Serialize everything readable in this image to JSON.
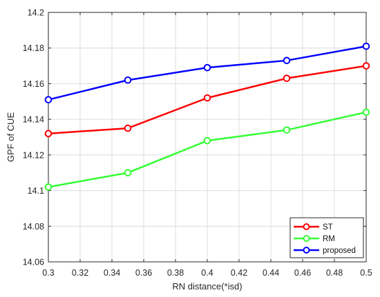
{
  "chart_data": {
    "type": "line",
    "xlabel": "RN distance(*isd)",
    "ylabel": "GPF of CUE",
    "xlim": [
      0.3,
      0.5
    ],
    "ylim": [
      14.06,
      14.2
    ],
    "xticks": [
      "0.3",
      "0.32",
      "0.34",
      "0.36",
      "0.38",
      "0.4",
      "0.42",
      "0.44",
      "0.46",
      "0.48",
      "0.5"
    ],
    "yticks": [
      "14.06",
      "14.08",
      "14.1",
      "14.12",
      "14.14",
      "14.16",
      "14.18",
      "14.2"
    ],
    "grid": true,
    "legend_position": "bottom-right",
    "x": [
      0.3,
      0.35,
      0.4,
      0.45,
      0.5
    ],
    "series": [
      {
        "name": "ST",
        "color": "#ff0000",
        "values": [
          14.132,
          14.135,
          14.152,
          14.163,
          14.17
        ]
      },
      {
        "name": "RM",
        "color": "#33ff33",
        "values": [
          14.102,
          14.11,
          14.128,
          14.134,
          14.144
        ]
      },
      {
        "name": "proposed",
        "color": "#0000ff",
        "values": [
          14.151,
          14.162,
          14.169,
          14.173,
          14.181
        ]
      }
    ]
  }
}
